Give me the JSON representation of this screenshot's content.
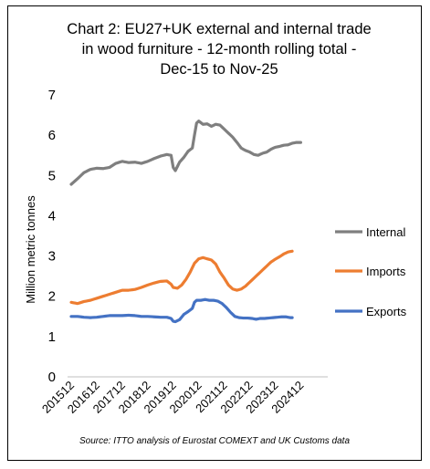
{
  "chart_data": {
    "type": "line",
    "title_lines": [
      "Chart 2: EU27+UK external and internal trade",
      "in wood furniture - 12-month rolling total  -",
      "Dec-15 to Nov-25"
    ],
    "ylabel": "Million metric tonnes",
    "xlabel": "",
    "ylim": [
      0,
      7
    ],
    "yticks": [
      "0",
      "1",
      "2",
      "3",
      "4",
      "5",
      "6",
      "7"
    ],
    "xticks": [
      {
        "label": "201512",
        "index": 0
      },
      {
        "label": "201612",
        "index": 12
      },
      {
        "label": "201712",
        "index": 24
      },
      {
        "label": "201812",
        "index": 36
      },
      {
        "label": "201912",
        "index": 48
      },
      {
        "label": "202012",
        "index": 60
      },
      {
        "label": "202112",
        "index": 72
      },
      {
        "label": "202212",
        "index": 84
      },
      {
        "label": "202312",
        "index": 96
      },
      {
        "label": "202412",
        "index": 108
      }
    ],
    "n_points": 120,
    "grid": false,
    "legend_position": "right",
    "series": [
      {
        "name": "Internal",
        "color": "#7f7f7f",
        "anchors": [
          [
            0,
            4.78
          ],
          [
            3,
            4.92
          ],
          [
            6,
            5.07
          ],
          [
            9,
            5.15
          ],
          [
            12,
            5.18
          ],
          [
            15,
            5.17
          ],
          [
            18,
            5.2
          ],
          [
            21,
            5.3
          ],
          [
            24,
            5.35
          ],
          [
            27,
            5.32
          ],
          [
            30,
            5.33
          ],
          [
            33,
            5.3
          ],
          [
            36,
            5.35
          ],
          [
            39,
            5.42
          ],
          [
            42,
            5.48
          ],
          [
            45,
            5.52
          ],
          [
            47,
            5.5
          ],
          [
            48,
            5.2
          ],
          [
            49,
            5.12
          ],
          [
            51,
            5.33
          ],
          [
            53,
            5.45
          ],
          [
            55,
            5.6
          ],
          [
            57,
            5.68
          ],
          [
            58,
            6.0
          ],
          [
            59,
            6.3
          ],
          [
            60,
            6.35
          ],
          [
            62,
            6.27
          ],
          [
            64,
            6.28
          ],
          [
            66,
            6.22
          ],
          [
            68,
            6.27
          ],
          [
            70,
            6.25
          ],
          [
            72,
            6.15
          ],
          [
            74,
            6.05
          ],
          [
            76,
            5.95
          ],
          [
            78,
            5.82
          ],
          [
            80,
            5.68
          ],
          [
            82,
            5.62
          ],
          [
            84,
            5.58
          ],
          [
            86,
            5.52
          ],
          [
            88,
            5.5
          ],
          [
            90,
            5.55
          ],
          [
            92,
            5.58
          ],
          [
            94,
            5.65
          ],
          [
            96,
            5.7
          ],
          [
            98,
            5.72
          ],
          [
            100,
            5.75
          ],
          [
            102,
            5.76
          ],
          [
            104,
            5.8
          ],
          [
            106,
            5.82
          ],
          [
            108,
            5.82
          ]
        ]
      },
      {
        "name": "Imports",
        "color": "#ed7d31",
        "anchors": [
          [
            0,
            1.85
          ],
          [
            3,
            1.82
          ],
          [
            6,
            1.87
          ],
          [
            9,
            1.9
          ],
          [
            12,
            1.95
          ],
          [
            15,
            2.0
          ],
          [
            18,
            2.05
          ],
          [
            21,
            2.1
          ],
          [
            24,
            2.15
          ],
          [
            27,
            2.15
          ],
          [
            30,
            2.17
          ],
          [
            33,
            2.22
          ],
          [
            36,
            2.28
          ],
          [
            39,
            2.33
          ],
          [
            42,
            2.37
          ],
          [
            45,
            2.38
          ],
          [
            47,
            2.3
          ],
          [
            48,
            2.22
          ],
          [
            50,
            2.2
          ],
          [
            52,
            2.28
          ],
          [
            54,
            2.42
          ],
          [
            56,
            2.6
          ],
          [
            58,
            2.82
          ],
          [
            60,
            2.93
          ],
          [
            62,
            2.96
          ],
          [
            64,
            2.93
          ],
          [
            66,
            2.9
          ],
          [
            68,
            2.8
          ],
          [
            70,
            2.6
          ],
          [
            72,
            2.45
          ],
          [
            74,
            2.28
          ],
          [
            76,
            2.18
          ],
          [
            78,
            2.15
          ],
          [
            80,
            2.18
          ],
          [
            82,
            2.25
          ],
          [
            84,
            2.35
          ],
          [
            86,
            2.45
          ],
          [
            88,
            2.55
          ],
          [
            90,
            2.65
          ],
          [
            92,
            2.75
          ],
          [
            94,
            2.85
          ],
          [
            96,
            2.92
          ],
          [
            98,
            2.98
          ],
          [
            100,
            3.05
          ],
          [
            102,
            3.1
          ],
          [
            104,
            3.12
          ]
        ]
      },
      {
        "name": "Exports",
        "color": "#4472c4",
        "anchors": [
          [
            0,
            1.5
          ],
          [
            3,
            1.5
          ],
          [
            6,
            1.48
          ],
          [
            9,
            1.47
          ],
          [
            12,
            1.48
          ],
          [
            15,
            1.5
          ],
          [
            18,
            1.52
          ],
          [
            21,
            1.52
          ],
          [
            24,
            1.52
          ],
          [
            27,
            1.53
          ],
          [
            30,
            1.52
          ],
          [
            33,
            1.5
          ],
          [
            36,
            1.5
          ],
          [
            39,
            1.49
          ],
          [
            42,
            1.48
          ],
          [
            45,
            1.48
          ],
          [
            47,
            1.45
          ],
          [
            48,
            1.38
          ],
          [
            49,
            1.37
          ],
          [
            51,
            1.42
          ],
          [
            53,
            1.55
          ],
          [
            55,
            1.62
          ],
          [
            57,
            1.7
          ],
          [
            58,
            1.85
          ],
          [
            59,
            1.9
          ],
          [
            61,
            1.9
          ],
          [
            63,
            1.92
          ],
          [
            65,
            1.9
          ],
          [
            67,
            1.9
          ],
          [
            69,
            1.88
          ],
          [
            71,
            1.82
          ],
          [
            73,
            1.72
          ],
          [
            75,
            1.6
          ],
          [
            77,
            1.5
          ],
          [
            79,
            1.47
          ],
          [
            81,
            1.46
          ],
          [
            83,
            1.46
          ],
          [
            85,
            1.45
          ],
          [
            87,
            1.43
          ],
          [
            89,
            1.45
          ],
          [
            91,
            1.45
          ],
          [
            93,
            1.46
          ],
          [
            95,
            1.47
          ],
          [
            97,
            1.48
          ],
          [
            99,
            1.49
          ],
          [
            101,
            1.49
          ],
          [
            103,
            1.47
          ],
          [
            104,
            1.47
          ]
        ]
      }
    ],
    "source": "Source: ITTO analysis of Eurostat COMEXT and UK Customs data"
  }
}
